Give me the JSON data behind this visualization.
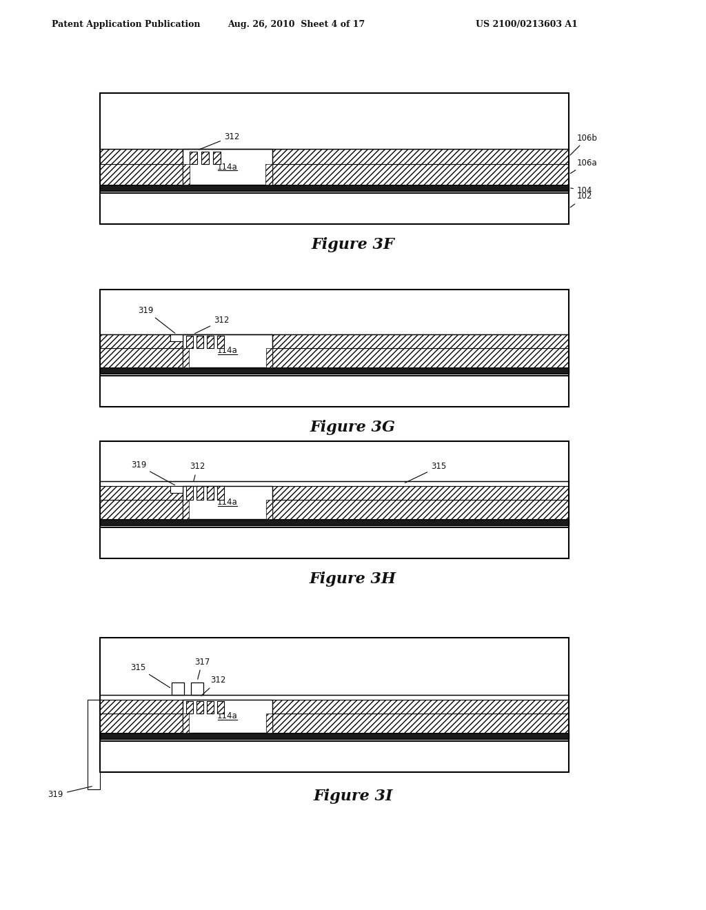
{
  "bg_color": "#ffffff",
  "header_left": "Patent Application Publication",
  "header_mid": "Aug. 26, 2010  Sheet 4 of 17",
  "header_right": "US 2100/0213603 A1",
  "line_color": "#000000",
  "hatch_pattern": "////",
  "figures": [
    "Figure 3F",
    "Figure 3G",
    "Figure 3H",
    "Figure 3I"
  ]
}
